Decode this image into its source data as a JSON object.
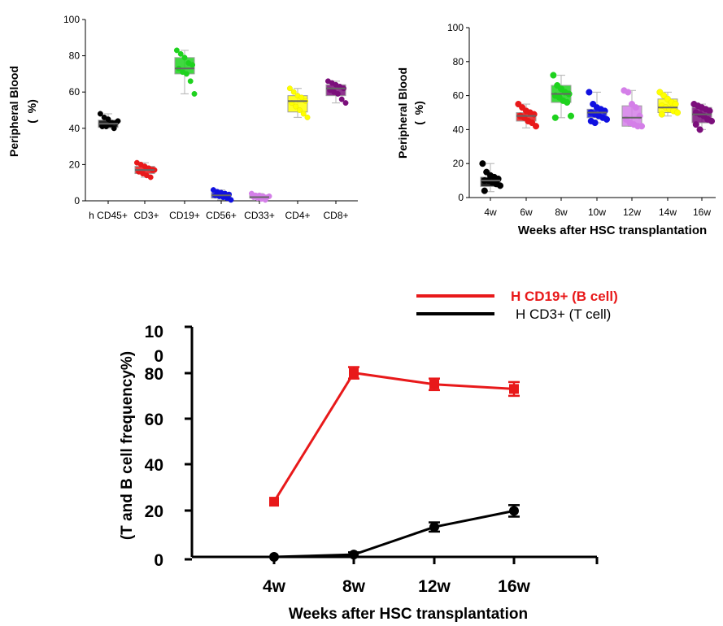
{
  "chart_data": [
    {
      "type": "box",
      "title": "",
      "ylabel": "Peripheral Blood",
      "ylabel_unit": "(  %)",
      "xlabel": "",
      "ylim": [
        0,
        100
      ],
      "yticks": [
        "0",
        "20",
        "40",
        "60",
        "80",
        "100"
      ],
      "categories": [
        "h CD45+",
        "CD3+",
        "CD19+",
        "CD56+",
        "CD33+",
        "CD4+",
        "CD8+"
      ],
      "colors": [
        "#000000",
        "#e8191a",
        "#1ed21e",
        "#1010e0",
        "#d47fe8",
        "#ffff00",
        "#7b0f7b"
      ],
      "boxes": [
        {
          "q1": 40.5,
          "median": 42.5,
          "q3": 44.5,
          "min": 40,
          "max": 48
        },
        {
          "q1": 15,
          "median": 17,
          "q3": 19,
          "min": 13,
          "max": 21
        },
        {
          "q1": 70,
          "median": 73,
          "q3": 79,
          "min": 59,
          "max": 83
        },
        {
          "q1": 1.5,
          "median": 3,
          "q3": 4.5,
          "min": 0.5,
          "max": 6
        },
        {
          "q1": 1.5,
          "median": 2,
          "q3": 3,
          "min": 0.5,
          "max": 4
        },
        {
          "q1": 49,
          "median": 55,
          "q3": 58,
          "min": 46,
          "max": 62
        },
        {
          "q1": 58,
          "median": 62,
          "q3": 64,
          "min": 54,
          "max": 66
        }
      ],
      "points": [
        [
          48,
          46,
          45,
          43,
          43,
          41,
          41,
          42,
          40,
          44
        ],
        [
          21,
          20,
          19,
          18,
          17,
          16,
          15,
          14,
          13,
          17
        ],
        [
          83,
          81,
          79,
          76,
          75,
          73,
          71,
          70,
          66,
          59
        ],
        [
          6,
          5,
          4.5,
          4,
          3.5,
          3,
          2.5,
          2,
          1.5,
          0.5
        ],
        [
          4,
          3,
          3,
          2.5,
          2,
          2,
          1.5,
          1,
          0.5,
          2.5
        ],
        [
          62,
          60,
          58,
          57,
          55,
          54,
          52,
          50,
          48,
          46
        ],
        [
          66,
          65,
          64,
          63,
          62,
          61,
          60,
          59,
          56,
          54
        ]
      ]
    },
    {
      "type": "box",
      "title": "",
      "ylabel": "Peripheral Blood",
      "ylabel_unit": "(  %)",
      "xlabel": "Weeks after HSC transplantation",
      "ylim": [
        0,
        100
      ],
      "yticks": [
        "0",
        "20",
        "40",
        "60",
        "80",
        "100"
      ],
      "categories": [
        "4w",
        "6w",
        "8w",
        "10w",
        "12w",
        "14w",
        "16w"
      ],
      "colors": [
        "#000000",
        "#e8191a",
        "#1ed21e",
        "#1010e0",
        "#d47fe8",
        "#ffff00",
        "#7b0f7b"
      ],
      "boxes": [
        {
          "q1": 6.5,
          "median": 10,
          "q3": 12,
          "min": 3.5,
          "max": 20
        },
        {
          "q1": 45,
          "median": 48,
          "q3": 50,
          "min": 41,
          "max": 55
        },
        {
          "q1": 56,
          "median": 61,
          "q3": 66,
          "min": 47,
          "max": 72
        },
        {
          "q1": 47,
          "median": 50,
          "q3": 52,
          "min": 44,
          "max": 62
        },
        {
          "q1": 42,
          "median": 47,
          "q3": 54,
          "min": 42,
          "max": 63
        },
        {
          "q1": 50,
          "median": 53,
          "q3": 58,
          "min": 48,
          "max": 62
        },
        {
          "q1": 44,
          "median": 49,
          "q3": 53,
          "min": 40,
          "max": 55
        }
      ],
      "points": [
        [
          20,
          15,
          13,
          12,
          11,
          10,
          10,
          9,
          8,
          7,
          4
        ],
        [
          55,
          53,
          51,
          50,
          49,
          48,
          47,
          45,
          44,
          42
        ],
        [
          72,
          66,
          64,
          62,
          61,
          60,
          59,
          57,
          56,
          48,
          47
        ],
        [
          62,
          55,
          53,
          52,
          51,
          50,
          49,
          48,
          47,
          46,
          45,
          44
        ],
        [
          63,
          62,
          55,
          53,
          48,
          46,
          44,
          43,
          42,
          42
        ],
        [
          62,
          60,
          58,
          56,
          55,
          54,
          53,
          52,
          51,
          50,
          49
        ],
        [
          55,
          54,
          53,
          52,
          51,
          50,
          49,
          48,
          46,
          45,
          43,
          40
        ]
      ]
    },
    {
      "type": "line",
      "title": "",
      "ylabel": "(T and B cell frequency%)",
      "xlabel": "Weeks after HSC transplantation",
      "x": [
        "4w",
        "8w",
        "12w",
        "16w"
      ],
      "ylim": [
        0,
        100
      ],
      "yticks": [
        "0",
        "20",
        "40",
        "60",
        "80",
        "10\n0"
      ],
      "series": [
        {
          "name": "H CD19+ (B cell)",
          "color": "#e8191a",
          "marker": "square",
          "values": [
            24,
            80,
            75,
            73
          ],
          "errors": [
            0,
            2.5,
            2.5,
            3
          ]
        },
        {
          "name": "H CD3+ (T cell)",
          "color": "#000000",
          "marker": "circle",
          "values": [
            0,
            1,
            13,
            20
          ],
          "errors": [
            0,
            1,
            2,
            2.5
          ]
        }
      ]
    }
  ]
}
